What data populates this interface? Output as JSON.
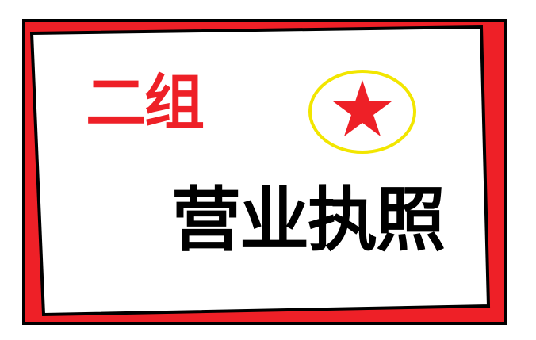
{
  "card": {
    "group_label": "二组",
    "license_title": "营业执照",
    "seal_icon": "red-star-in-yellow-circle"
  },
  "colors": {
    "frame_red": "#ee2027",
    "outline": "#000000",
    "card_bg": "#ffffff",
    "seal_ring": "#f2e600",
    "star": "#ee2027",
    "title_text": "#000000",
    "group_text": "#ee2027"
  }
}
